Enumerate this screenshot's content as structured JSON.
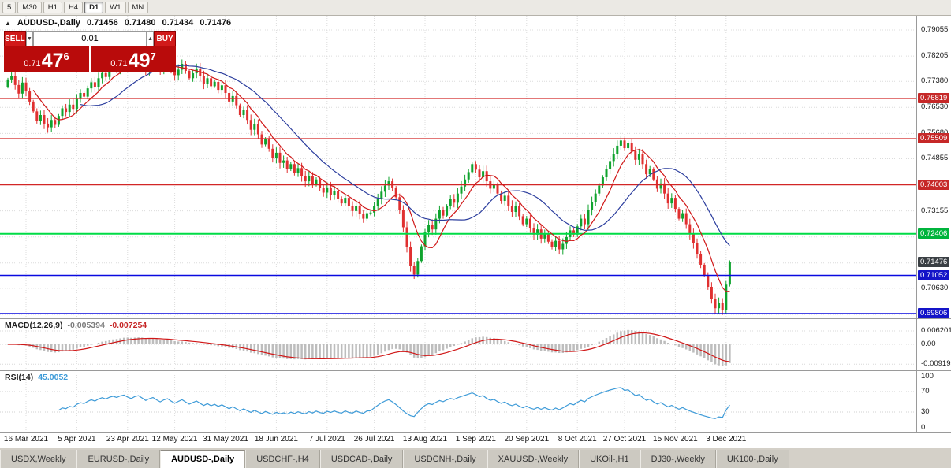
{
  "toolbar": {
    "timeframes": [
      "5",
      "M30",
      "H1",
      "H4",
      "D1",
      "W1",
      "MN"
    ],
    "active": "D1"
  },
  "chart_header": {
    "collapse_icon": "▲",
    "symbol": "AUDUSD-,Daily",
    "open": "0.71456",
    "high": "0.71480",
    "low": "0.71434",
    "close": "0.71476"
  },
  "trade_panel": {
    "sell_label": "SELL",
    "buy_label": "BUY",
    "volume": "0.01",
    "down_icon": "▼",
    "up_icon": "▲",
    "sell_quote": {
      "prefix": "0.71",
      "big": "47",
      "sup": "6"
    },
    "buy_quote": {
      "prefix": "0.71",
      "big": "49",
      "sup": "7"
    }
  },
  "price_axis": {
    "plain": [
      "0.79055",
      "0.78205",
      "0.77380",
      "0.76530",
      "0.75680",
      "0.74855",
      "0.73155",
      "0.70630"
    ],
    "boxes": [
      {
        "text": "0.76819",
        "color": "#c62828",
        "price": 0.76819
      },
      {
        "text": "0.75509",
        "color": "#c62828",
        "price": 0.75509
      },
      {
        "text": "0.74003",
        "color": "#c62828",
        "price": 0.74003
      },
      {
        "text": "0.72406",
        "color": "#00b43c",
        "price": 0.72406
      },
      {
        "text": "0.71476",
        "color": "#3a3f44",
        "price": 0.71476
      },
      {
        "text": "0.71052",
        "color": "#1414c8",
        "price": 0.71052
      },
      {
        "text": "0.69806",
        "color": "#1414c8",
        "price": 0.69806
      }
    ]
  },
  "chart_data": {
    "type": "candlestick",
    "symbol": "AUDUSD",
    "timeframe": "Daily",
    "title": "AUDUSD-,Daily",
    "y_axis": {
      "top_price": 0.79055,
      "bottom_price": 0.69806
    },
    "first_open": 0.772,
    "closes": [
      0.7744,
      0.7756,
      0.7726,
      0.7698,
      0.7734,
      0.7705,
      0.7672,
      0.764,
      0.761,
      0.7628,
      0.76,
      0.7588,
      0.7612,
      0.7596,
      0.7625,
      0.765,
      0.7638,
      0.7662,
      0.7648,
      0.768,
      0.77,
      0.7688,
      0.7715,
      0.7735,
      0.772,
      0.7748,
      0.7765,
      0.7752,
      0.7775,
      0.779,
      0.7778,
      0.78,
      0.7812,
      0.7795,
      0.7782,
      0.7806,
      0.7818,
      0.7798,
      0.7775,
      0.7795,
      0.781,
      0.7788,
      0.7768,
      0.779,
      0.7803,
      0.778,
      0.7758,
      0.7776,
      0.7795,
      0.7772,
      0.7748,
      0.7764,
      0.778,
      0.7755,
      0.773,
      0.7748,
      0.7722,
      0.7736,
      0.771,
      0.7725,
      0.77,
      0.7672,
      0.769,
      0.766,
      0.7628,
      0.7645,
      0.7612,
      0.758,
      0.7598,
      0.7565,
      0.7532,
      0.755,
      0.7518,
      0.7488,
      0.7505,
      0.7472,
      0.748,
      0.7452,
      0.7468,
      0.744,
      0.7455,
      0.7428,
      0.7412,
      0.743,
      0.7402,
      0.7418,
      0.739,
      0.7375,
      0.7392,
      0.7368,
      0.738,
      0.7355,
      0.734,
      0.7358,
      0.733,
      0.7315,
      0.7332,
      0.7305,
      0.729,
      0.7308,
      0.731,
      0.7332,
      0.7355,
      0.7378,
      0.7398,
      0.7412,
      0.739,
      0.736,
      0.7318,
      0.7262,
      0.7198,
      0.7135,
      0.7108,
      0.7152,
      0.72,
      0.7245,
      0.727,
      0.7255,
      0.729,
      0.7318,
      0.73,
      0.7332,
      0.7355,
      0.7342,
      0.7372,
      0.7395,
      0.7418,
      0.7442,
      0.7468,
      0.745,
      0.7425,
      0.7445,
      0.7412,
      0.7388,
      0.7402,
      0.7372,
      0.7348,
      0.7365,
      0.7332,
      0.7312,
      0.733,
      0.7298,
      0.7272,
      0.729,
      0.7258,
      0.7238,
      0.7255,
      0.7225,
      0.7242,
      0.7215,
      0.7198,
      0.7218,
      0.719,
      0.7208,
      0.723,
      0.7252,
      0.7238,
      0.7265,
      0.729,
      0.7272,
      0.7318,
      0.7345,
      0.7372,
      0.7398,
      0.7425,
      0.7452,
      0.7478,
      0.7502,
      0.7528,
      0.7545,
      0.752,
      0.7538,
      0.751,
      0.7482,
      0.75,
      0.7468,
      0.7435,
      0.7452,
      0.7418,
      0.7388,
      0.7405,
      0.7372,
      0.734,
      0.7358,
      0.7322,
      0.729,
      0.7308,
      0.7272,
      0.724,
      0.721,
      0.7175,
      0.714,
      0.7105,
      0.7068,
      0.7028,
      0.6998,
      0.7015,
      0.6992,
      0.7075,
      0.7148
    ],
    "gridline_prices": [
      0.79055,
      0.78205,
      0.7738,
      0.7653,
      0.7568,
      0.74855,
      0.74005,
      0.73155,
      0.72306,
      0.71456,
      0.7063,
      0.69781
    ],
    "hlines": [
      {
        "price": 0.76819,
        "color": "#d22626",
        "w": 1.2
      },
      {
        "price": 0.75509,
        "color": "#d22626",
        "w": 1.2
      },
      {
        "price": 0.74003,
        "color": "#d22626",
        "w": 1.2
      },
      {
        "price": 0.72406,
        "color": "#00dc46",
        "w": 2
      },
      {
        "price": 0.71052,
        "color": "#0a0ae0",
        "w": 1.5
      },
      {
        "price": 0.69806,
        "color": "#0a0ae0",
        "w": 1.5
      }
    ],
    "colors": {
      "up": "#0fa32e",
      "down": "#e03030",
      "ma_fast": "#d01818",
      "ma_slow": "#2c3e9e",
      "macd_hist": "#bdbdbd",
      "macd_signal": "#d01818",
      "rsi": "#3e9bd8",
      "grid": "#dcdcdc"
    },
    "ma_periods": {
      "fast": 8,
      "slow": 21
    },
    "macd_params": [
      12,
      26,
      9
    ],
    "rsi_period": 14
  },
  "macd_panel": {
    "name": "MACD(12,26,9)",
    "value_main": "-0.005394",
    "value_signal": "-0.007254",
    "axis": [
      {
        "text": "0.006201",
        "v": 0.006201
      },
      {
        "text": "0.00",
        "v": 0
      },
      {
        "text": "-0.009193",
        "v": -0.009193
      }
    ]
  },
  "rsi_panel": {
    "name": "RSI(14)",
    "value": "45.0052",
    "axis": [
      {
        "text": "100",
        "v": 100
      },
      {
        "text": "70",
        "v": 70
      },
      {
        "text": "30",
        "v": 30
      },
      {
        "text": "0",
        "v": 0
      }
    ],
    "levels": [
      70,
      30
    ]
  },
  "date_axis": {
    "labels": [
      {
        "text": "16 Mar 2021",
        "i": 5
      },
      {
        "text": "5 Apr 2021",
        "i": 19
      },
      {
        "text": "23 Apr 2021",
        "i": 33
      },
      {
        "text": "12 May 2021",
        "i": 46
      },
      {
        "text": "31 May 2021",
        "i": 60
      },
      {
        "text": "18 Jun 2021",
        "i": 74
      },
      {
        "text": "7 Jul 2021",
        "i": 88
      },
      {
        "text": "26 Jul 2021",
        "i": 101
      },
      {
        "text": "13 Aug 2021",
        "i": 115
      },
      {
        "text": "1 Sep 2021",
        "i": 129
      },
      {
        "text": "20 Sep 2021",
        "i": 143
      },
      {
        "text": "8 Oct 2021",
        "i": 157
      },
      {
        "text": "27 Oct 2021",
        "i": 170
      },
      {
        "text": "15 Nov 2021",
        "i": 184
      },
      {
        "text": "3 Dec 2021",
        "i": 198
      }
    ]
  },
  "tabs": {
    "items": [
      "USDX,Weekly",
      "EURUSD-,Daily",
      "AUDUSD-,Daily",
      "USDCHF-,H4",
      "USDCAD-,Daily",
      "USDCNH-,Daily",
      "XAUUSD-,Weekly",
      "UKOil-,H1",
      "DJ30-,Weekly",
      "UK100-,Daily"
    ],
    "active_index": 2
  }
}
